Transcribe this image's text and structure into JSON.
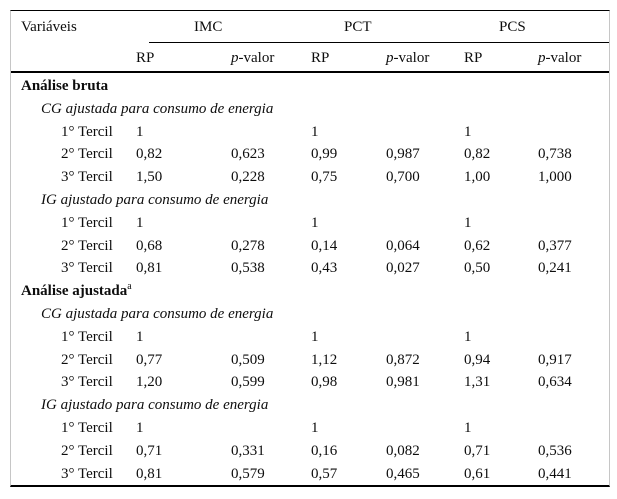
{
  "table": {
    "header": {
      "variables_label": "Variáveis",
      "groups": [
        "IMC",
        "PCT",
        "PCS"
      ],
      "rp_label": "RP",
      "p_italic": "p",
      "p_rest": "-valor"
    },
    "rows": [
      {
        "type": "section",
        "label": "Análise bruta"
      },
      {
        "type": "subsection",
        "label": "CG ajustada para consumo de energia"
      },
      {
        "type": "data",
        "label": "1° Tercil",
        "values": [
          "1",
          "",
          "1",
          "",
          "1",
          ""
        ]
      },
      {
        "type": "data",
        "label": "2° Tercil",
        "values": [
          "0,82",
          "0,623",
          "0,99",
          "0,987",
          "0,82",
          "0,738"
        ]
      },
      {
        "type": "data",
        "label": "3° Tercil",
        "values": [
          "1,50",
          "0,228",
          "0,75",
          "0,700",
          "1,00",
          "1,000"
        ]
      },
      {
        "type": "subsection",
        "label": "IG ajustado para consumo de energia"
      },
      {
        "type": "data",
        "label": "1° Tercil",
        "values": [
          "1",
          "",
          "1",
          "",
          "1",
          ""
        ]
      },
      {
        "type": "data",
        "label": "2° Tercil",
        "values": [
          "0,68",
          "0,278",
          "0,14",
          "0,064",
          "0,62",
          "0,377"
        ]
      },
      {
        "type": "data",
        "label": "3° Tercil",
        "values": [
          "0,81",
          "0,538",
          "0,43",
          "0,027",
          "0,50",
          "0,241"
        ]
      },
      {
        "type": "section",
        "label": "Análise ajustada",
        "sup": "a"
      },
      {
        "type": "subsection",
        "label": "CG ajustada para consumo de energia"
      },
      {
        "type": "data",
        "label": "1° Tercil",
        "values": [
          "1",
          "",
          "1",
          "",
          "1",
          ""
        ]
      },
      {
        "type": "data",
        "label": "2° Tercil",
        "values": [
          "0,77",
          "0,509",
          "1,12",
          "0,872",
          "0,94",
          "0,917"
        ]
      },
      {
        "type": "data",
        "label": "3° Tercil",
        "values": [
          "1,20",
          "0,599",
          "0,98",
          "0,981",
          "1,31",
          "0,634"
        ]
      },
      {
        "type": "subsection",
        "label": "IG ajustado para consumo de energia"
      },
      {
        "type": "data",
        "label": "1° Tercil",
        "values": [
          "1",
          "",
          "1",
          "",
          "1",
          ""
        ]
      },
      {
        "type": "data",
        "label": "2° Tercil",
        "values": [
          "0,71",
          "0,331",
          "0,16",
          "0,082",
          "0,71",
          "0,536"
        ]
      },
      {
        "type": "data",
        "label": "3° Tercil",
        "values": [
          "0,81",
          "0,579",
          "0,57",
          "0,465",
          "0,61",
          "0,441"
        ]
      }
    ]
  }
}
